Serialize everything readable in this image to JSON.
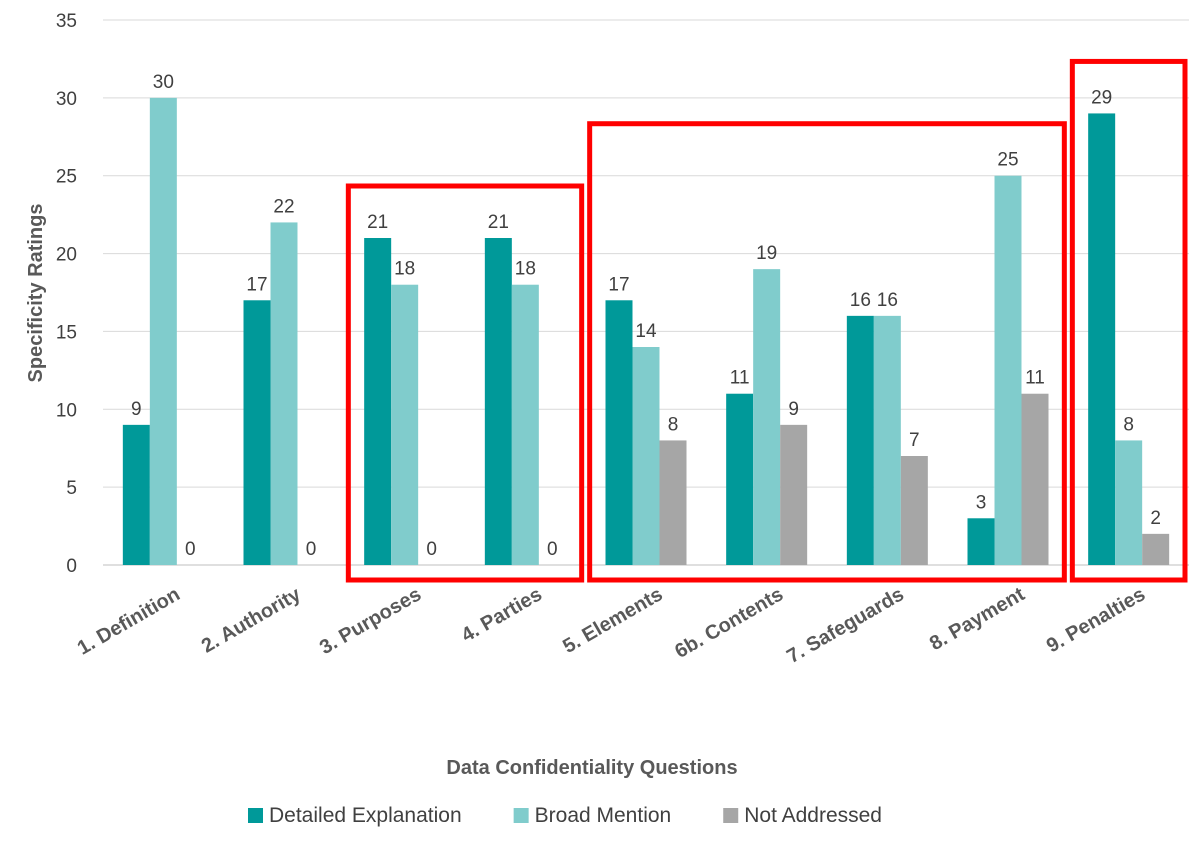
{
  "chart_data": {
    "type": "bar",
    "title": "",
    "xlabel": "Data Confidentiality Questions",
    "ylabel": "Specificity Ratings",
    "ylim": [
      0,
      35
    ],
    "yticks": [
      0,
      5,
      10,
      15,
      20,
      25,
      30,
      35
    ],
    "grid": "horizontal",
    "legend_position": "bottom",
    "categories": [
      "1. Definition",
      "2. Authority",
      "3. Purposes",
      "4. Parties",
      "5. Elements",
      "6b. Contents",
      "7. Safeguards",
      "8. Payment",
      "9. Penalties"
    ],
    "series": [
      {
        "name": "Detailed Explanation",
        "color": "#009999",
        "values": [
          9,
          17,
          21,
          21,
          17,
          11,
          16,
          3,
          29
        ],
        "labels": [
          "9",
          "17",
          "21",
          "21",
          "17",
          "11",
          "16",
          "3",
          "29"
        ]
      },
      {
        "name": "Broad Mention",
        "color": "#80CCCC",
        "values": [
          30,
          22,
          18,
          18,
          14,
          19,
          16,
          25,
          8
        ],
        "labels": [
          "30",
          "22",
          "18",
          "18",
          "14",
          "19",
          "16",
          "25",
          "8"
        ]
      },
      {
        "name": "Not Addressed",
        "color": "#A6A6A6",
        "values": [
          0,
          0,
          0,
          0,
          8,
          9,
          7,
          11,
          2
        ],
        "labels": [
          "0",
          "0",
          "0",
          "0",
          "8",
          "9",
          "7",
          "11",
          "2"
        ]
      }
    ],
    "highlight_groups": [
      {
        "from": "3. Purposes",
        "to": "4. Parties",
        "color": "#FF0000"
      },
      {
        "from": "5. Elements",
        "to": "8. Payment",
        "color": "#FF0000"
      },
      {
        "from": "9. Penalties",
        "to": "9. Penalties",
        "color": "#FF0000"
      }
    ]
  }
}
